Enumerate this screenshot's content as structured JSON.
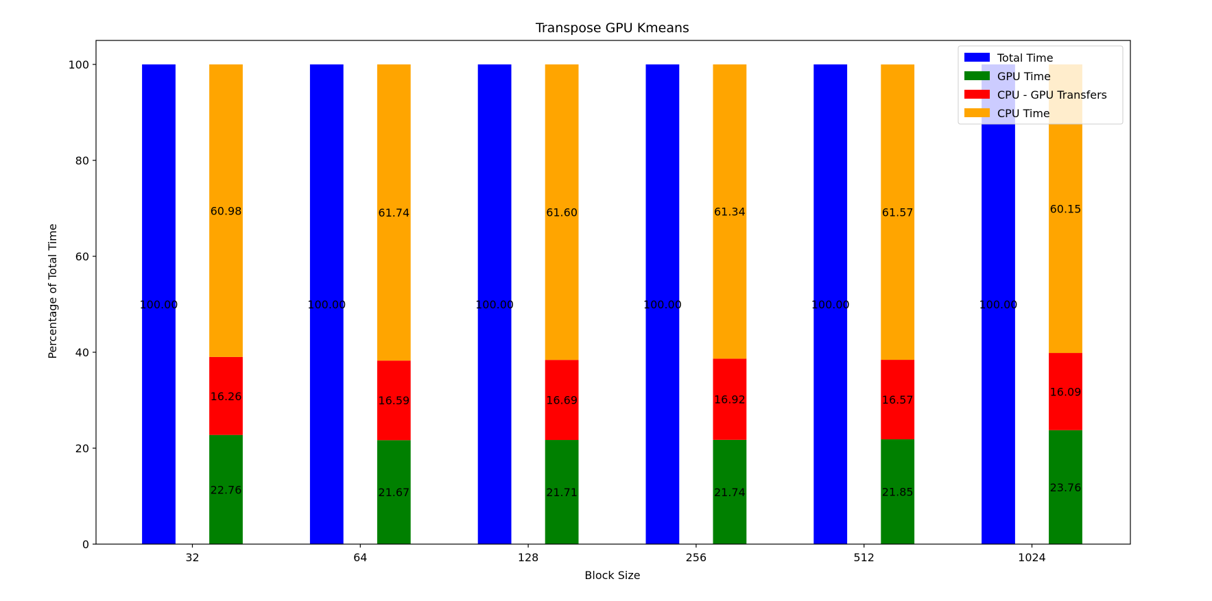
{
  "chart_data": {
    "type": "bar",
    "title": "Transpose GPU Kmeans",
    "xlabel": "Block Size",
    "ylabel": "Percentage of Total Time",
    "categories": [
      "32",
      "64",
      "128",
      "256",
      "512",
      "1024"
    ],
    "ylim": [
      0,
      105
    ],
    "yticks": [
      0,
      20,
      40,
      60,
      80,
      100
    ],
    "grid": false,
    "legend_position": "top-right",
    "series": [
      {
        "name": "Total Time",
        "color": "#0000ff",
        "group": "left",
        "values": [
          100.0,
          100.0,
          100.0,
          100.0,
          100.0,
          100.0
        ],
        "labels": [
          "100.00",
          "100.00",
          "100.00",
          "100.00",
          "100.00",
          "100.00"
        ]
      },
      {
        "name": "GPU Time",
        "color": "#008000",
        "group": "right-stack",
        "values": [
          22.76,
          21.67,
          21.71,
          21.74,
          21.85,
          23.76
        ],
        "labels": [
          "22.76",
          "21.67",
          "21.71",
          "21.74",
          "21.85",
          "23.76"
        ]
      },
      {
        "name": "CPU - GPU Transfers",
        "color": "#ff0000",
        "group": "right-stack",
        "values": [
          16.26,
          16.59,
          16.69,
          16.92,
          16.57,
          16.09
        ],
        "labels": [
          "16.26",
          "16.59",
          "16.69",
          "16.92",
          "16.57",
          "16.09"
        ]
      },
      {
        "name": "CPU Time",
        "color": "#ffa500",
        "group": "right-stack",
        "values": [
          60.98,
          61.74,
          61.6,
          61.34,
          61.57,
          60.15
        ],
        "labels": [
          "60.98",
          "61.74",
          "61.60",
          "61.34",
          "61.57",
          "60.15"
        ]
      }
    ]
  }
}
